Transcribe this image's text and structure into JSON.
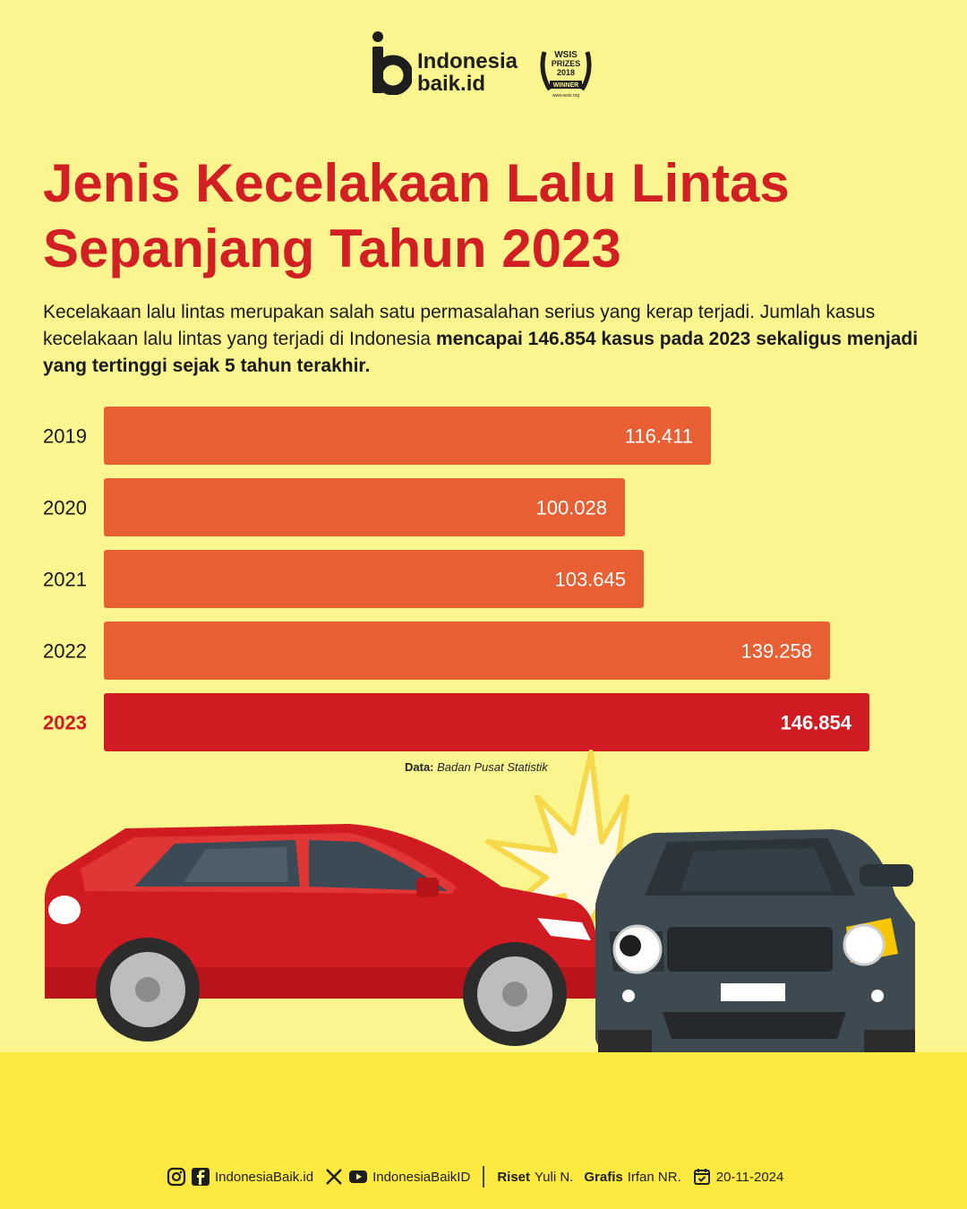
{
  "brand": {
    "line1": "Indonesia",
    "line2": "baik.id",
    "award": {
      "line1": "WSIS",
      "line2": "PRIZES",
      "line3": "2018",
      "line4": "WINNER",
      "line5": "www.wsis.org"
    }
  },
  "header": {
    "title_line1": "Jenis Kecelakaan Lalu Lintas",
    "title_line2": "Sepanjang Tahun 2023"
  },
  "intro": {
    "text1": "Kecelakaan lalu lintas merupakan salah satu permasalahan serius yang kerap terjadi. Jumlah kasus kecelakaan lalu lintas yang terjadi di Indonesia ",
    "bold": "mencapai 146.854 kasus pada 2023 sekaligus menjadi yang tertinggi sejak 5 tahun terakhir."
  },
  "chart_data": {
    "type": "bar",
    "orientation": "horizontal",
    "categories": [
      "2019",
      "2020",
      "2021",
      "2022",
      "2023"
    ],
    "values": [
      116411,
      100028,
      103645,
      139258,
      146854
    ],
    "value_labels": [
      "116.411",
      "100.028",
      "103.645",
      "139.258",
      "146.854"
    ],
    "highlight": "2023",
    "colors": {
      "bar": "#e85f33",
      "highlight": "#d01b22",
      "label": "#ffffff",
      "highlight_label": "#d01b22"
    },
    "title": "",
    "xlabel": "",
    "ylabel": ""
  },
  "source": {
    "label": "Data:",
    "value": "Badan Pusat Statistik"
  },
  "footer": {
    "handle1": "IndonesiaBaik.id",
    "handle2": "IndonesiaBaikID",
    "research_label": "Riset",
    "research_name": "Yuli N.",
    "graphic_label": "Grafis",
    "graphic_name": "Irfan NR.",
    "date": "20-11-2024",
    "icons": [
      "instagram-icon",
      "facebook-icon",
      "x-icon",
      "youtube-icon",
      "calendar-icon"
    ]
  }
}
